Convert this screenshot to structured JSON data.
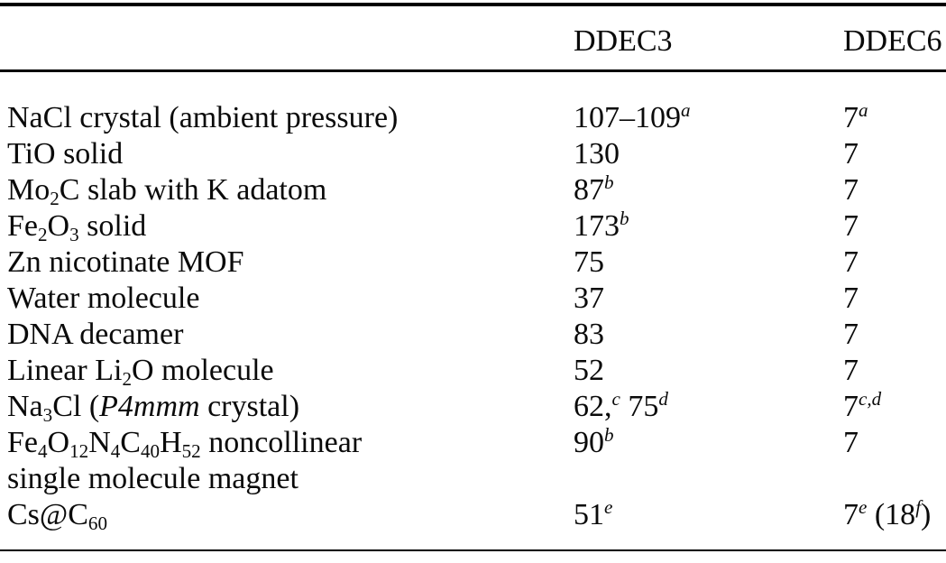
{
  "page": {
    "background_color": "#ffffff",
    "text_color": "#0a0a0a",
    "rule_color": "#000000"
  },
  "table": {
    "column_headers": [
      "",
      "DDEC3",
      "DDEC6"
    ],
    "rows": [
      {
        "system": [
          {
            "t": "text",
            "v": "NaCl crystal (ambient pressure)"
          }
        ],
        "ddec3": [
          {
            "t": "text",
            "v": "107–109"
          },
          {
            "t": "sup",
            "v": "a"
          }
        ],
        "ddec6": [
          {
            "t": "text",
            "v": "7"
          },
          {
            "t": "sup",
            "v": "a"
          }
        ]
      },
      {
        "system": [
          {
            "t": "text",
            "v": "TiO solid"
          }
        ],
        "ddec3": [
          {
            "t": "text",
            "v": "130"
          }
        ],
        "ddec6": [
          {
            "t": "text",
            "v": "7"
          }
        ]
      },
      {
        "system": [
          {
            "t": "text",
            "v": "Mo"
          },
          {
            "t": "sub",
            "v": "2"
          },
          {
            "t": "text",
            "v": "C slab with K adatom"
          }
        ],
        "ddec3": [
          {
            "t": "text",
            "v": "87"
          },
          {
            "t": "sup",
            "v": "b"
          }
        ],
        "ddec6": [
          {
            "t": "text",
            "v": "7"
          }
        ]
      },
      {
        "system": [
          {
            "t": "text",
            "v": "Fe"
          },
          {
            "t": "sub",
            "v": "2"
          },
          {
            "t": "text",
            "v": "O"
          },
          {
            "t": "sub",
            "v": "3"
          },
          {
            "t": "text",
            "v": " solid"
          }
        ],
        "ddec3": [
          {
            "t": "text",
            "v": "173"
          },
          {
            "t": "sup",
            "v": "b"
          }
        ],
        "ddec6": [
          {
            "t": "text",
            "v": "7"
          }
        ]
      },
      {
        "system": [
          {
            "t": "text",
            "v": "Zn nicotinate MOF"
          }
        ],
        "ddec3": [
          {
            "t": "text",
            "v": "75"
          }
        ],
        "ddec6": [
          {
            "t": "text",
            "v": "7"
          }
        ]
      },
      {
        "system": [
          {
            "t": "text",
            "v": "Water molecule"
          }
        ],
        "ddec3": [
          {
            "t": "text",
            "v": "37"
          }
        ],
        "ddec6": [
          {
            "t": "text",
            "v": "7"
          }
        ]
      },
      {
        "system": [
          {
            "t": "text",
            "v": "DNA decamer"
          }
        ],
        "ddec3": [
          {
            "t": "text",
            "v": "83"
          }
        ],
        "ddec6": [
          {
            "t": "text",
            "v": "7"
          }
        ]
      },
      {
        "system": [
          {
            "t": "text",
            "v": "Linear Li"
          },
          {
            "t": "sub",
            "v": "2"
          },
          {
            "t": "text",
            "v": "O molecule"
          }
        ],
        "ddec3": [
          {
            "t": "text",
            "v": "52"
          }
        ],
        "ddec6": [
          {
            "t": "text",
            "v": "7"
          }
        ]
      },
      {
        "system": [
          {
            "t": "text",
            "v": "Na"
          },
          {
            "t": "sub",
            "v": "3"
          },
          {
            "t": "text",
            "v": "Cl ("
          },
          {
            "t": "i",
            "v": "P4mmm"
          },
          {
            "t": "text",
            "v": " crystal)"
          }
        ],
        "ddec3": [
          {
            "t": "text",
            "v": "62,"
          },
          {
            "t": "sup",
            "v": "c"
          },
          {
            "t": "text",
            "v": " 75"
          },
          {
            "t": "sup",
            "v": "d"
          }
        ],
        "ddec6": [
          {
            "t": "text",
            "v": "7"
          },
          {
            "t": "sup",
            "v": "c,d"
          }
        ]
      },
      {
        "system": [
          {
            "t": "text",
            "v": "Fe"
          },
          {
            "t": "sub",
            "v": "4"
          },
          {
            "t": "text",
            "v": "O"
          },
          {
            "t": "sub",
            "v": "12"
          },
          {
            "t": "text",
            "v": "N"
          },
          {
            "t": "sub",
            "v": "4"
          },
          {
            "t": "text",
            "v": "C"
          },
          {
            "t": "sub",
            "v": "40"
          },
          {
            "t": "text",
            "v": "H"
          },
          {
            "t": "sub",
            "v": "52"
          },
          {
            "t": "text",
            "v": " noncollinear"
          },
          {
            "t": "br"
          },
          {
            "t": "text",
            "v": "single molecule magnet"
          }
        ],
        "ddec3": [
          {
            "t": "text",
            "v": "90"
          },
          {
            "t": "sup",
            "v": "b"
          }
        ],
        "ddec6": [
          {
            "t": "text",
            "v": "7"
          }
        ]
      },
      {
        "system": [
          {
            "t": "text",
            "v": "Cs@C"
          },
          {
            "t": "sub",
            "v": "60"
          }
        ],
        "ddec3": [
          {
            "t": "text",
            "v": "51"
          },
          {
            "t": "sup",
            "v": "e"
          }
        ],
        "ddec6": [
          {
            "t": "text",
            "v": "7"
          },
          {
            "t": "sup",
            "v": "e"
          },
          {
            "t": "text",
            "v": " (18"
          },
          {
            "t": "sup",
            "v": "f"
          },
          {
            "t": "text",
            "v": ")"
          }
        ]
      }
    ]
  }
}
